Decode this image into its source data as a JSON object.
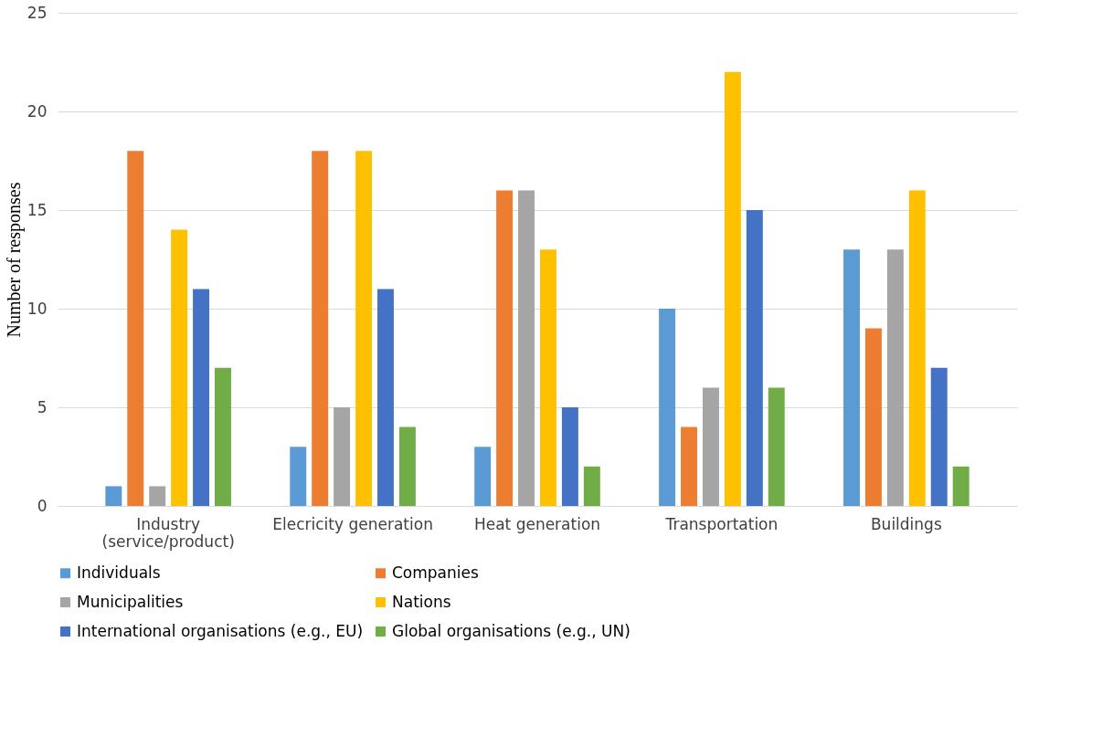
{
  "chart_data": {
    "type": "bar",
    "ylabel": "Number of responses",
    "categories": [
      "Industry\n(service/product)",
      "Elecricity generation",
      "Heat generation",
      "Transportation",
      "Buildings"
    ],
    "series": [
      {
        "name": "Individuals",
        "color": "#5b9bd5",
        "values": [
          1,
          3,
          3,
          10,
          13
        ]
      },
      {
        "name": "Companies",
        "color": "#ed7d31",
        "values": [
          18,
          18,
          16,
          4,
          9
        ]
      },
      {
        "name": "Municipalities",
        "color": "#a5a5a5",
        "values": [
          1,
          5,
          16,
          6,
          13
        ]
      },
      {
        "name": "Nations",
        "color": "#ffc000",
        "values": [
          14,
          18,
          13,
          22,
          16
        ]
      },
      {
        "name": "International organisations (e.g., EU)",
        "color": "#4472c4",
        "values": [
          11,
          11,
          5,
          15,
          7
        ]
      },
      {
        "name": "Global organisations (e.g.,  UN)",
        "color": "#70ad47",
        "values": [
          7,
          4,
          2,
          6,
          2
        ]
      }
    ],
    "ylim": [
      0,
      25
    ],
    "yticks": [
      0,
      5,
      10,
      15,
      20,
      25
    ],
    "grid": "y",
    "legend": "bottom"
  }
}
